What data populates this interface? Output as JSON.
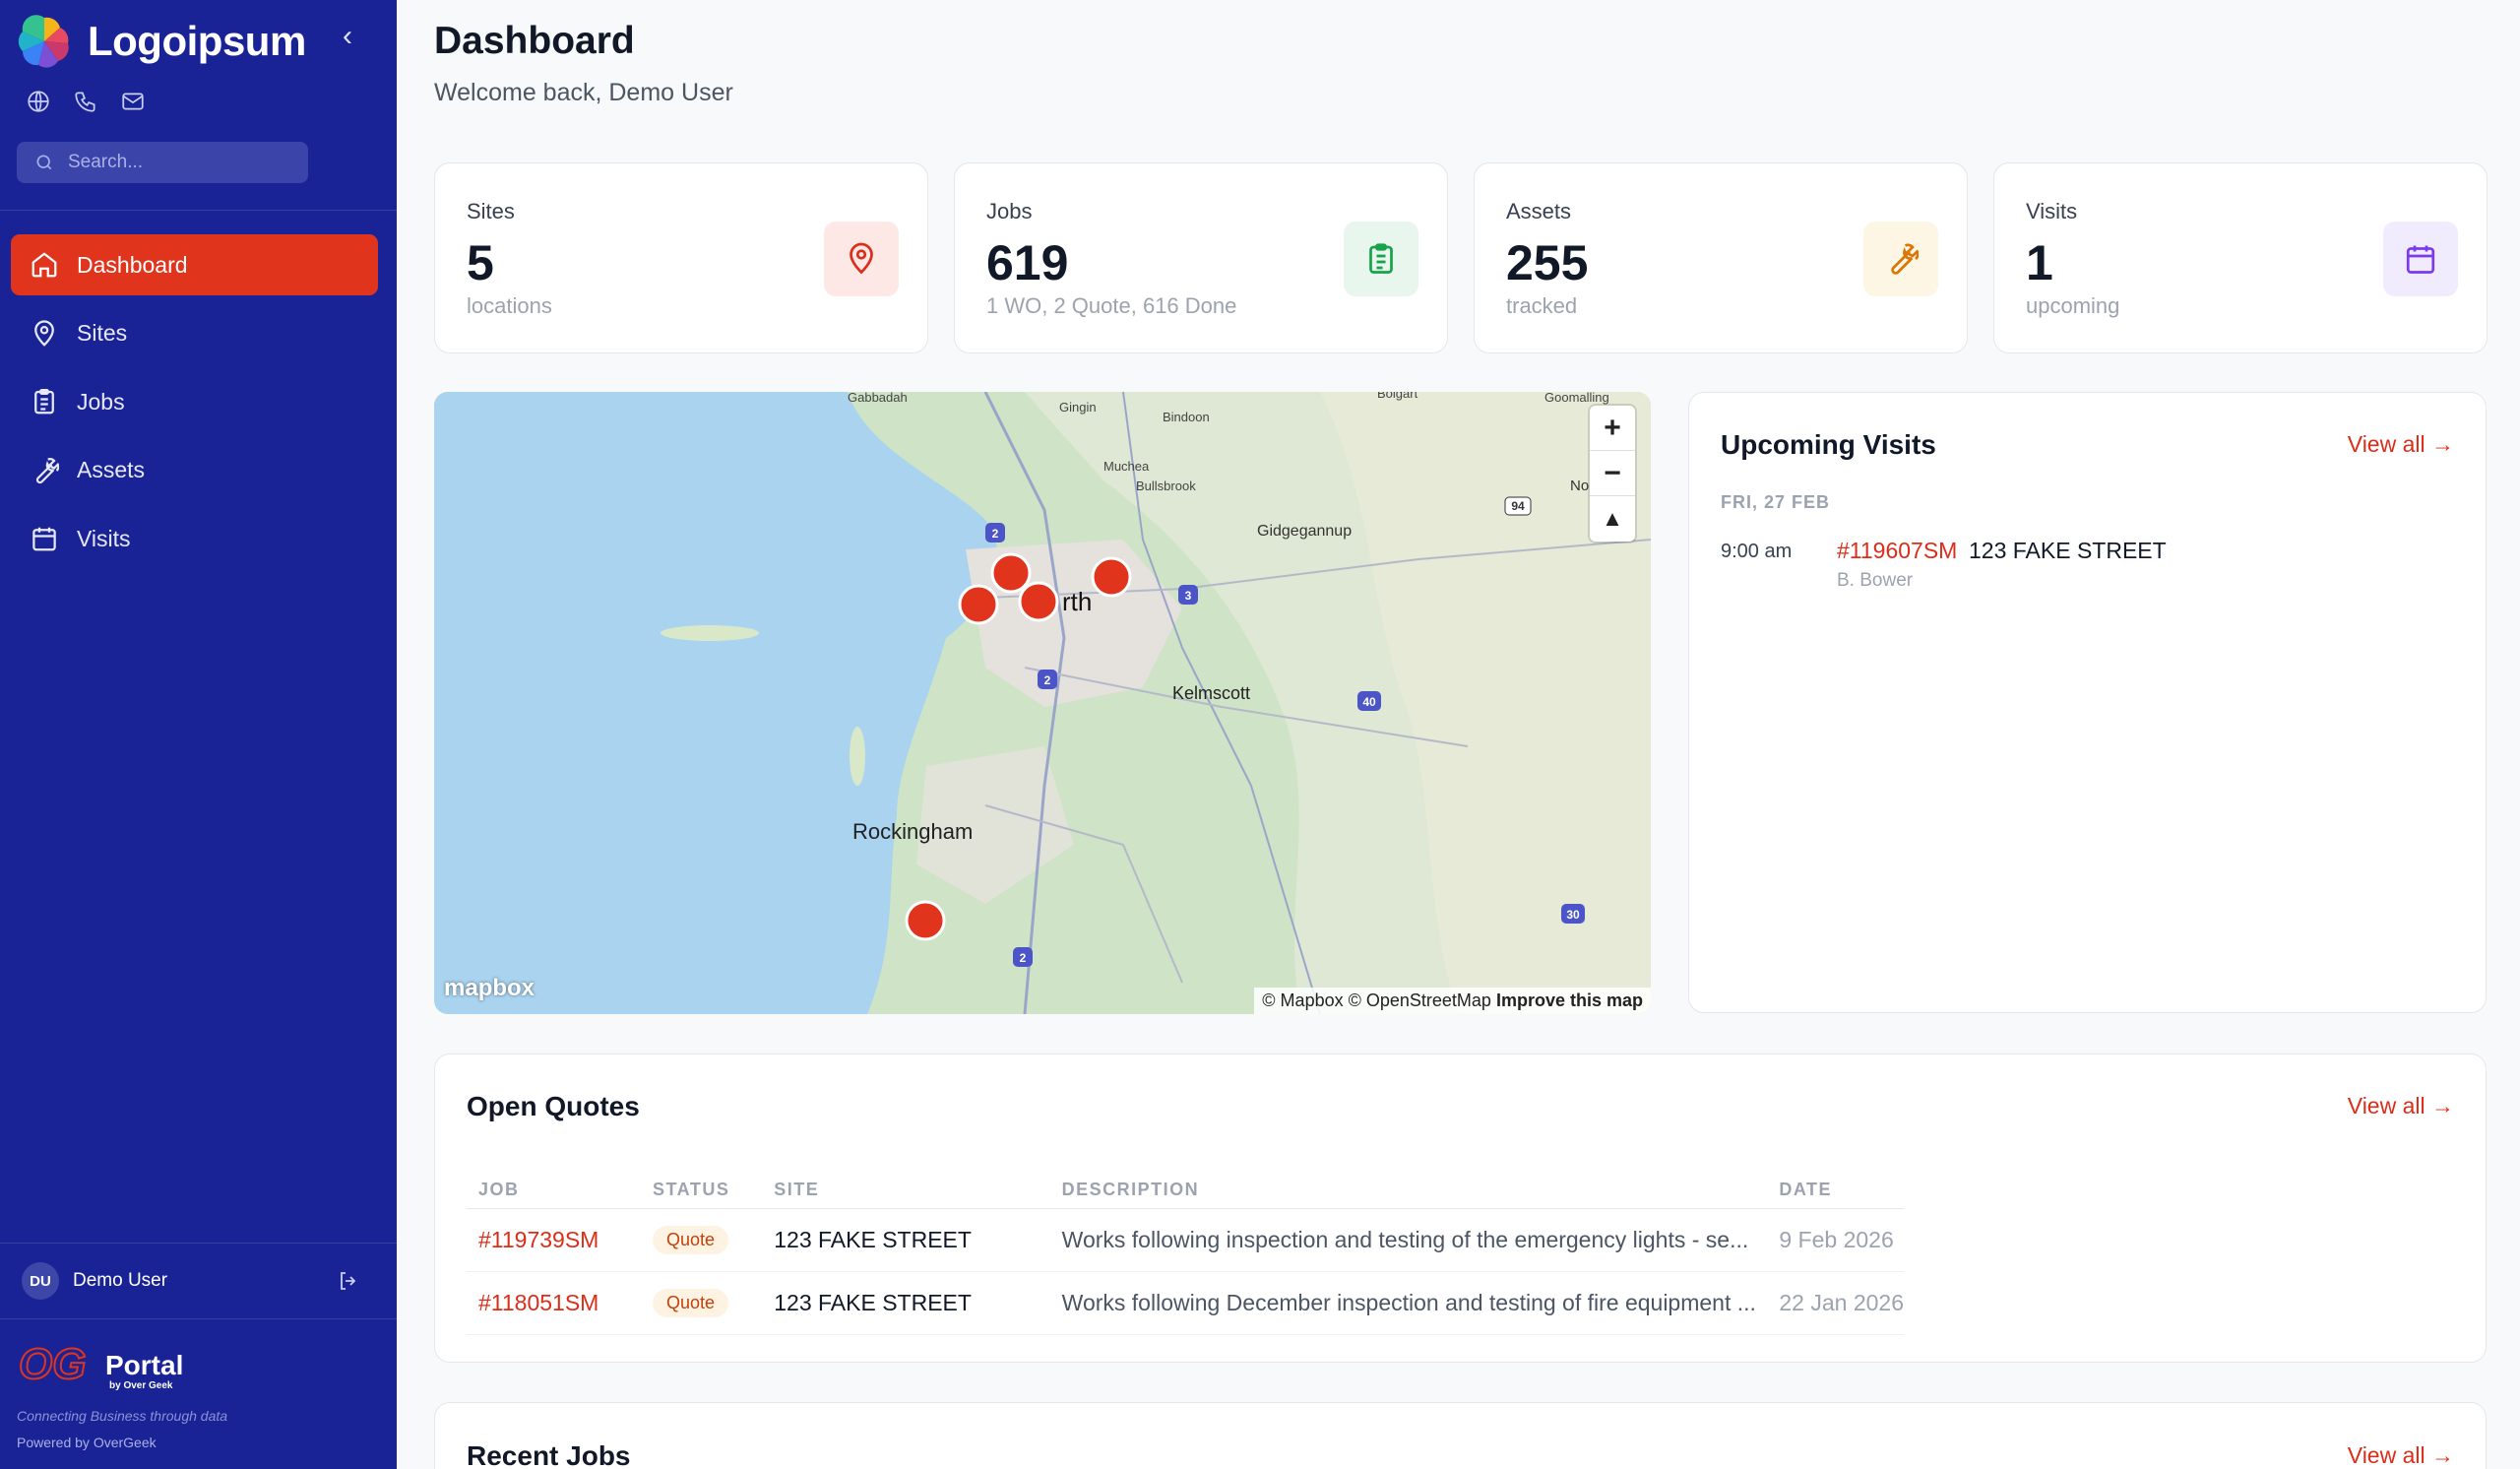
{
  "brand": {
    "name": "Logoipsum"
  },
  "search": {
    "placeholder": "Search..."
  },
  "nav": [
    {
      "label": "Dashboard",
      "icon": "home-icon",
      "active": true
    },
    {
      "label": "Sites",
      "icon": "map-pin-icon"
    },
    {
      "label": "Jobs",
      "icon": "clipboard-icon"
    },
    {
      "label": "Assets",
      "icon": "wrench-icon"
    },
    {
      "label": "Visits",
      "icon": "calendar-icon"
    }
  ],
  "user": {
    "initials": "DU",
    "name": "Demo User"
  },
  "footer": {
    "logo_text": "Portal",
    "logo_sub": "by Over Geek",
    "tagline": "Connecting Business through data",
    "powered": "Powered by OverGeek"
  },
  "header": {
    "title": "Dashboard",
    "subtitle": "Welcome back, Demo User"
  },
  "stats": [
    {
      "label": "Sites",
      "value": "5",
      "sub": "locations",
      "icon": "map-pin-icon",
      "color": "#dc2d1a",
      "bg": "#fde8e6"
    },
    {
      "label": "Jobs",
      "value": "619",
      "sub": "1 WO, 2 Quote, 616 Done",
      "icon": "clipboard-icon",
      "color": "#16a34a",
      "bg": "#e8f6ee"
    },
    {
      "label": "Assets",
      "value": "255",
      "sub": "tracked",
      "icon": "wrench-icon",
      "color": "#d97706",
      "bg": "#fef6e4"
    },
    {
      "label": "Visits",
      "value": "1",
      "sub": "upcoming",
      "icon": "calendar-icon",
      "color": "#7c3aed",
      "bg": "#f1ebfe"
    }
  ],
  "map": {
    "labels": [
      "Gabbadah",
      "Gingin",
      "Bindoon",
      "Bolgart",
      "Goomalling",
      "Muchea",
      "Bullsbrook",
      "Gidgegannup",
      "No",
      "rth",
      "Kelmscott",
      "Rockingham"
    ],
    "road_shields": [
      "2",
      "3",
      "2",
      "40",
      "2",
      "30",
      "94"
    ],
    "attribution": "© Mapbox © OpenStreetMap",
    "improve": "Improve this map",
    "logo": "mapbox",
    "marker_color": "#e0341c"
  },
  "upcoming": {
    "title": "Upcoming Visits",
    "view_all": "View all →",
    "date": "FRI, 27 FEB",
    "time": "9:00 am",
    "job": "#119607SM",
    "site": "123 FAKE STREET",
    "tech": "B. Bower"
  },
  "quotes": {
    "title": "Open Quotes",
    "view_all": "View all →",
    "columns": [
      "JOB",
      "STATUS",
      "SITE",
      "DESCRIPTION",
      "DATE"
    ],
    "rows": [
      {
        "job": "#119739SM",
        "status": "Quote",
        "site": "123 FAKE STREET",
        "description": "Works following inspection and testing of the emergency lights - se...",
        "date": "9 Feb 2026"
      },
      {
        "job": "#118051SM",
        "status": "Quote",
        "site": "123 FAKE STREET",
        "description": "Works following December inspection and testing of fire equipment ...",
        "date": "22 Jan 2026"
      }
    ]
  },
  "recent": {
    "title": "Recent Jobs",
    "view_all": "View all →"
  }
}
